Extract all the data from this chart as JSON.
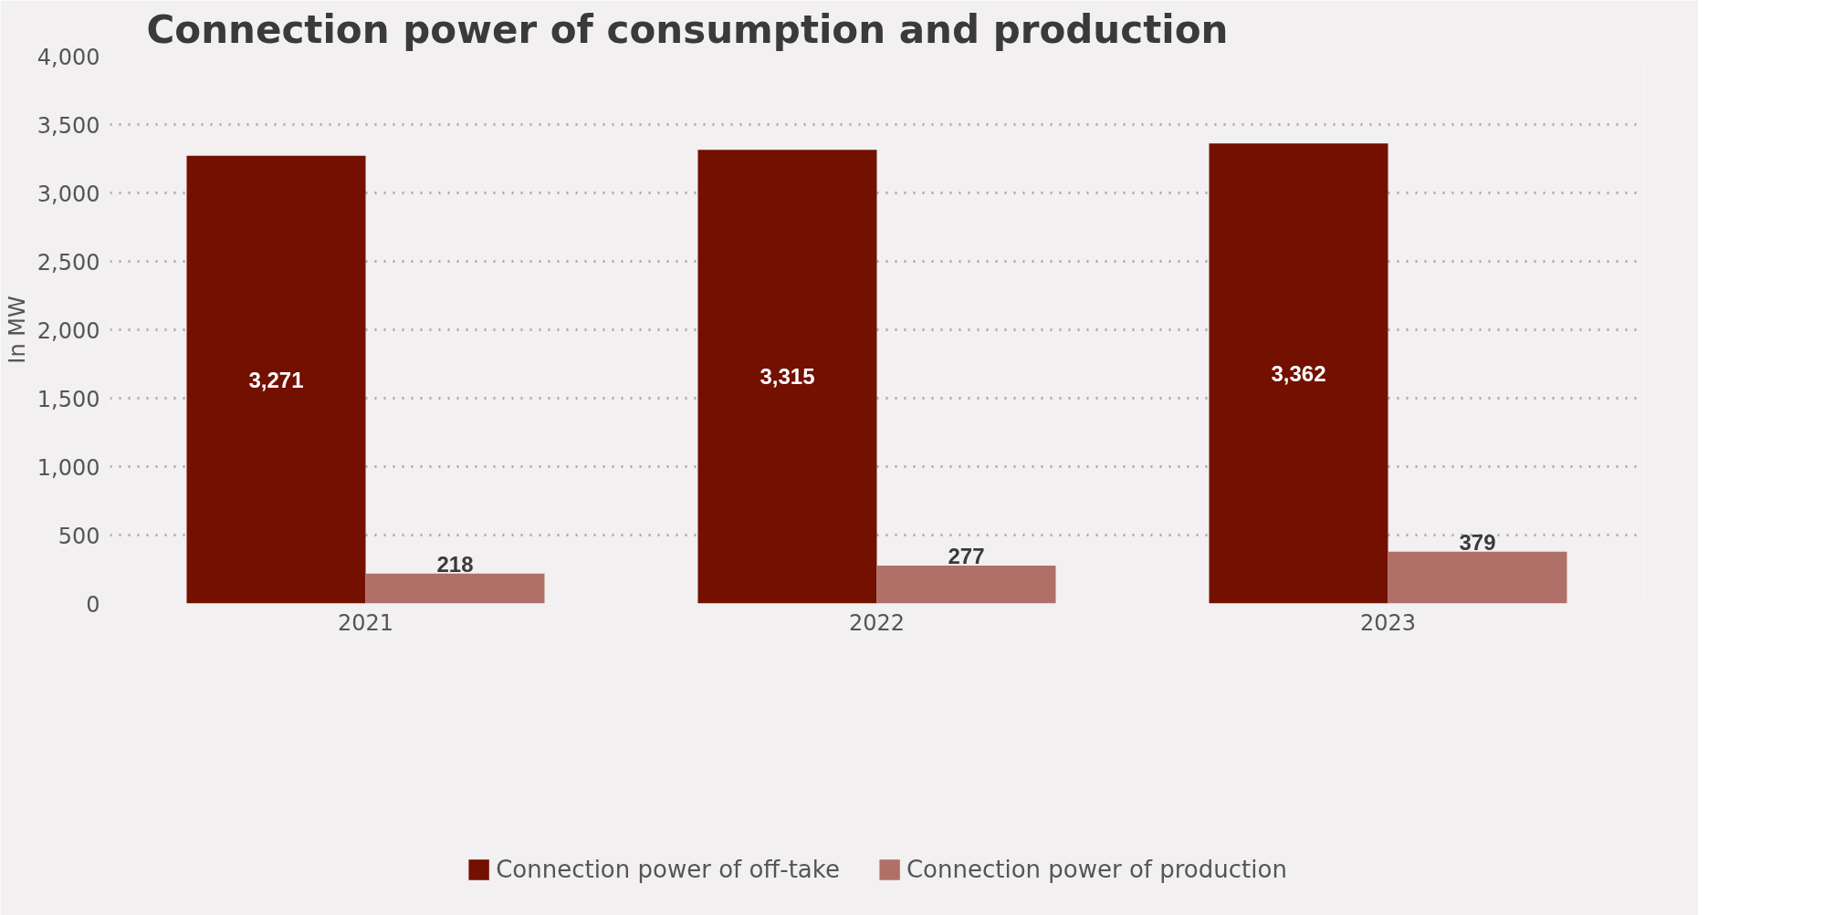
{
  "chart_data": {
    "type": "bar",
    "title": "Connection power of consumption and production",
    "ylabel": "In MW",
    "categories": [
      "2021",
      "2022",
      "2023"
    ],
    "series": [
      {
        "name": "Connection power of off-take",
        "color": "#731000",
        "values": [
          3271,
          3315,
          3362
        ],
        "value_labels": [
          "3,271",
          "3,315",
          "3,362"
        ]
      },
      {
        "name": "Connection power of production",
        "color": "#b07068",
        "values": [
          218,
          277,
          379
        ],
        "value_labels": [
          "218",
          "277",
          "379"
        ]
      }
    ],
    "ylim": [
      0,
      4000
    ],
    "yticks": [
      {
        "value": 0,
        "label": "0"
      },
      {
        "value": 500,
        "label": "500"
      },
      {
        "value": 1000,
        "label": "1,000"
      },
      {
        "value": 1500,
        "label": "1,500"
      },
      {
        "value": 2000,
        "label": "2,000"
      },
      {
        "value": 2500,
        "label": "2,500"
      },
      {
        "value": 3000,
        "label": "3,000"
      },
      {
        "value": 3500,
        "label": "3,500"
      },
      {
        "value": 4000,
        "label": "4,000"
      }
    ],
    "grid": "y",
    "legend": "bottom"
  }
}
